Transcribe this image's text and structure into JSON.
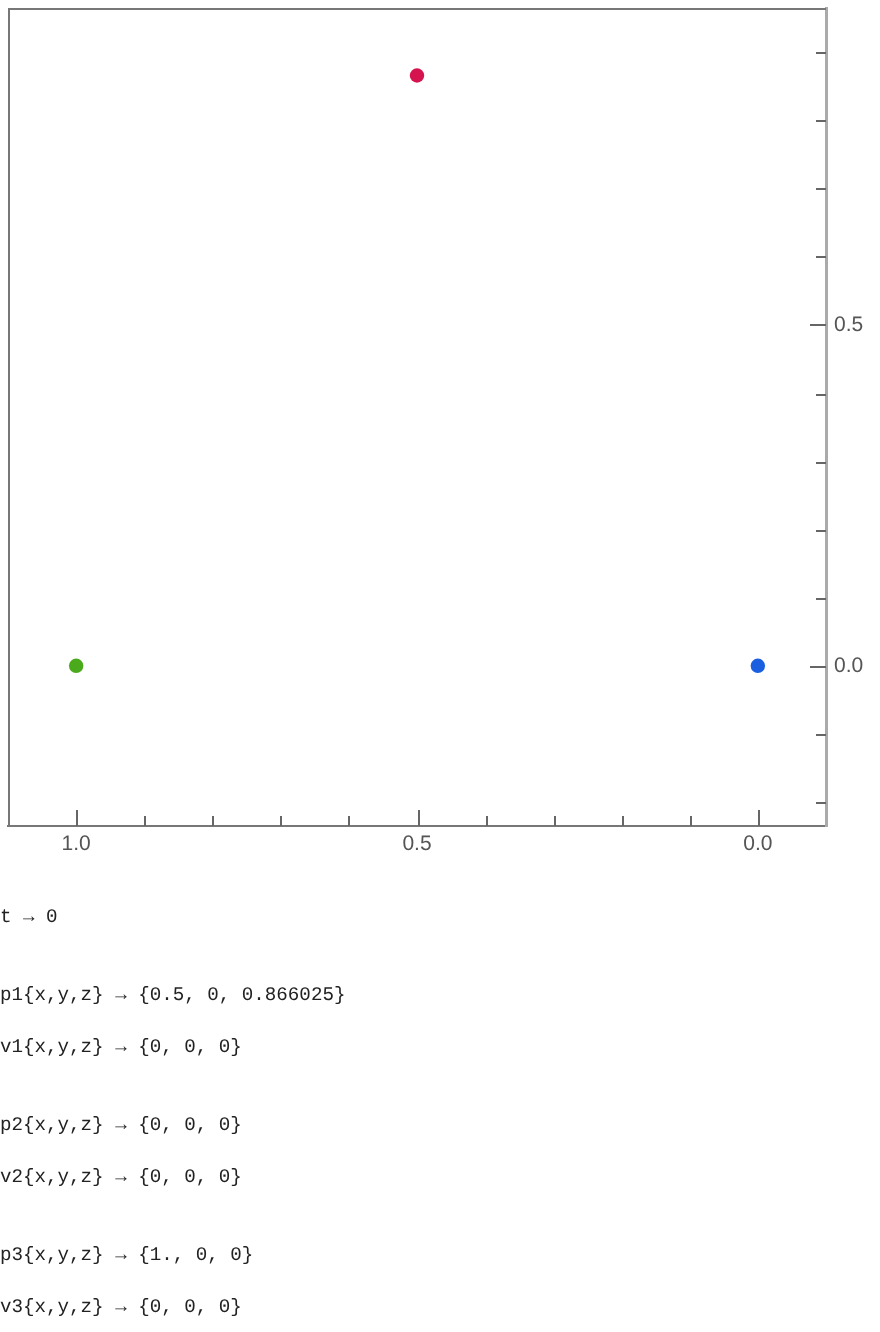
{
  "chart_data": {
    "type": "scatter",
    "x": [
      0.5,
      0,
      1
    ],
    "values": [
      0.866,
      0,
      0
    ],
    "colors": [
      "#d5144f",
      "#1a5fe0",
      "#4aaa1c"
    ],
    "xlim": [
      1.1,
      -0.1
    ],
    "ylim": [
      -0.235,
      0.965
    ],
    "xticks": [
      {
        "value": 1.0,
        "label": "1.0"
      },
      {
        "value": 0.9,
        "label": null
      },
      {
        "value": 0.8,
        "label": null
      },
      {
        "value": 0.7,
        "label": null
      },
      {
        "value": 0.6,
        "label": null
      },
      0.5,
      {
        "value": 0.4,
        "label": null
      },
      {
        "value": 0.3,
        "label": null
      },
      {
        "value": 0.2,
        "label": null
      },
      {
        "value": 0.1,
        "label": null
      },
      {
        "value": 0,
        "label": "0.0"
      }
    ],
    "yticks": [
      {
        "value": -0.2,
        "label": null
      },
      {
        "value": -0.1,
        "label": null
      },
      {
        "value": 0,
        "label": "0.0"
      },
      {
        "value": 0.1,
        "label": null
      },
      {
        "value": 0.2,
        "label": null
      },
      {
        "value": 0.3,
        "label": null
      },
      {
        "value": 0.4,
        "label": null
      },
      0.5,
      {
        "value": 0.6,
        "label": null
      },
      {
        "value": 0.7,
        "label": null
      },
      {
        "value": 0.8,
        "label": null
      },
      {
        "value": 0.9,
        "label": null
      }
    ],
    "marker": "circle",
    "annotations": [
      "t → 0",
      "p1{x,y,z} → {0.5, 0, 0.866025}",
      "v1{x,y,z} → {0, 0, 0}",
      "p2{x,y,z} → {0, 0, 0}",
      "v2{x,y,z} → {0, 0, 0}",
      "p3{x,y,z} → {1., 0, 0}",
      "v3{x,y,z} → {0, 0, 0}"
    ]
  }
}
